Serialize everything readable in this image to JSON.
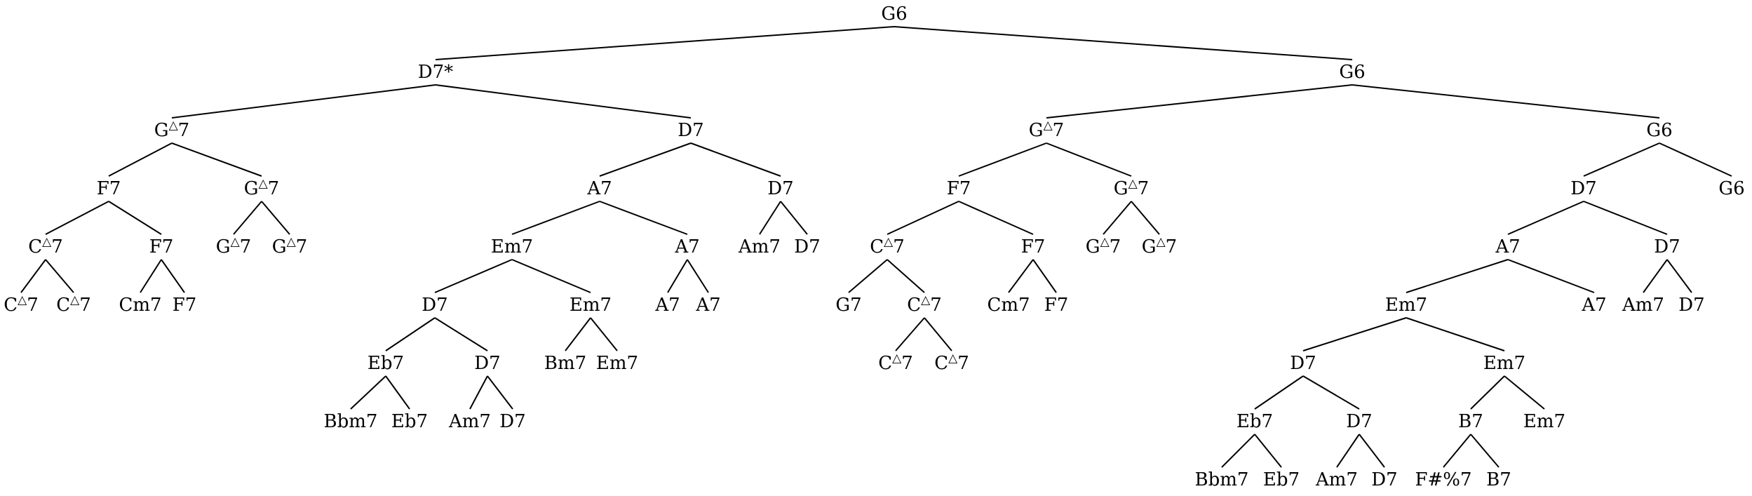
{
  "tree": {
    "nodes": [
      {
        "id": 0,
        "base": "G",
        "sup": "",
        "suffix": "6"
      },
      {
        "id": 1,
        "base": "D7*",
        "sup": "",
        "suffix": ""
      },
      {
        "id": 2,
        "base": "G",
        "sup": "△",
        "suffix": "7"
      },
      {
        "id": 3,
        "base": "F7",
        "sup": "",
        "suffix": ""
      },
      {
        "id": 4,
        "base": "C",
        "sup": "△",
        "suffix": "7"
      },
      {
        "id": 5,
        "base": "C",
        "sup": "△",
        "suffix": "7"
      },
      {
        "id": 6,
        "base": "C",
        "sup": "△",
        "suffix": "7"
      },
      {
        "id": 7,
        "base": "F7",
        "sup": "",
        "suffix": ""
      },
      {
        "id": 8,
        "base": "Cm7",
        "sup": "",
        "suffix": ""
      },
      {
        "id": 9,
        "base": "F7",
        "sup": "",
        "suffix": ""
      },
      {
        "id": 10,
        "base": "G",
        "sup": "△",
        "suffix": "7"
      },
      {
        "id": 11,
        "base": "G",
        "sup": "△",
        "suffix": "7"
      },
      {
        "id": 12,
        "base": "G",
        "sup": "△",
        "suffix": "7"
      },
      {
        "id": 13,
        "base": "D7",
        "sup": "",
        "suffix": ""
      },
      {
        "id": 14,
        "base": "A7",
        "sup": "",
        "suffix": ""
      },
      {
        "id": 15,
        "base": "Em7",
        "sup": "",
        "suffix": ""
      },
      {
        "id": 16,
        "base": "D7",
        "sup": "",
        "suffix": ""
      },
      {
        "id": 17,
        "base": "Eb7",
        "sup": "",
        "suffix": ""
      },
      {
        "id": 18,
        "base": "Bbm7",
        "sup": "",
        "suffix": ""
      },
      {
        "id": 19,
        "base": "Eb7",
        "sup": "",
        "suffix": ""
      },
      {
        "id": 20,
        "base": "D7",
        "sup": "",
        "suffix": ""
      },
      {
        "id": 21,
        "base": "Am7",
        "sup": "",
        "suffix": ""
      },
      {
        "id": 22,
        "base": "D7",
        "sup": "",
        "suffix": ""
      },
      {
        "id": 23,
        "base": "Em7",
        "sup": "",
        "suffix": ""
      },
      {
        "id": 24,
        "base": "Bm7",
        "sup": "",
        "suffix": ""
      },
      {
        "id": 25,
        "base": "Em7",
        "sup": "",
        "suffix": ""
      },
      {
        "id": 26,
        "base": "A7",
        "sup": "",
        "suffix": ""
      },
      {
        "id": 27,
        "base": "A7",
        "sup": "",
        "suffix": ""
      },
      {
        "id": 28,
        "base": "A7",
        "sup": "",
        "suffix": ""
      },
      {
        "id": 29,
        "base": "D7",
        "sup": "",
        "suffix": ""
      },
      {
        "id": 30,
        "base": "Am7",
        "sup": "",
        "suffix": ""
      },
      {
        "id": 31,
        "base": "D7",
        "sup": "",
        "suffix": ""
      },
      {
        "id": 32,
        "base": "G",
        "sup": "",
        "suffix": "6"
      },
      {
        "id": 33,
        "base": "G",
        "sup": "△",
        "suffix": "7"
      },
      {
        "id": 34,
        "base": "F7",
        "sup": "",
        "suffix": ""
      },
      {
        "id": 35,
        "base": "C",
        "sup": "△",
        "suffix": "7"
      },
      {
        "id": 36,
        "base": "G7",
        "sup": "",
        "suffix": ""
      },
      {
        "id": 37,
        "base": "C",
        "sup": "△",
        "suffix": "7"
      },
      {
        "id": 38,
        "base": "C",
        "sup": "△",
        "suffix": "7"
      },
      {
        "id": 39,
        "base": "C",
        "sup": "△",
        "suffix": "7"
      },
      {
        "id": 40,
        "base": "F7",
        "sup": "",
        "suffix": ""
      },
      {
        "id": 41,
        "base": "Cm7",
        "sup": "",
        "suffix": ""
      },
      {
        "id": 42,
        "base": "F7",
        "sup": "",
        "suffix": ""
      },
      {
        "id": 43,
        "base": "G",
        "sup": "△",
        "suffix": "7"
      },
      {
        "id": 44,
        "base": "G",
        "sup": "△",
        "suffix": "7"
      },
      {
        "id": 45,
        "base": "G",
        "sup": "△",
        "suffix": "7"
      },
      {
        "id": 46,
        "base": "G",
        "sup": "",
        "suffix": "6"
      },
      {
        "id": 47,
        "base": "D7",
        "sup": "",
        "suffix": ""
      },
      {
        "id": 48,
        "base": "A7",
        "sup": "",
        "suffix": ""
      },
      {
        "id": 49,
        "base": "Em7",
        "sup": "",
        "suffix": ""
      },
      {
        "id": 50,
        "base": "D7",
        "sup": "",
        "suffix": ""
      },
      {
        "id": 51,
        "base": "Eb7",
        "sup": "",
        "suffix": ""
      },
      {
        "id": 52,
        "base": "Bbm7",
        "sup": "",
        "suffix": ""
      },
      {
        "id": 53,
        "base": "Eb7",
        "sup": "",
        "suffix": ""
      },
      {
        "id": 54,
        "base": "D7",
        "sup": "",
        "suffix": ""
      },
      {
        "id": 55,
        "base": "Am7",
        "sup": "",
        "suffix": ""
      },
      {
        "id": 56,
        "base": "D7",
        "sup": "",
        "suffix": ""
      },
      {
        "id": 57,
        "base": "Em7",
        "sup": "",
        "suffix": ""
      },
      {
        "id": 58,
        "base": "B7",
        "sup": "",
        "suffix": ""
      },
      {
        "id": 59,
        "base": "F#%7",
        "sup": "",
        "suffix": ""
      },
      {
        "id": 60,
        "base": "B7",
        "sup": "",
        "suffix": ""
      },
      {
        "id": 61,
        "base": "Em7",
        "sup": "",
        "suffix": ""
      },
      {
        "id": 62,
        "base": "A7",
        "sup": "",
        "suffix": ""
      },
      {
        "id": 63,
        "base": "D7",
        "sup": "",
        "suffix": ""
      },
      {
        "id": 64,
        "base": "Am7",
        "sup": "",
        "suffix": ""
      },
      {
        "id": 65,
        "base": "D7",
        "sup": "",
        "suffix": ""
      },
      {
        "id": 66,
        "base": "G",
        "sup": "",
        "suffix": "6"
      }
    ],
    "edges": [
      [
        0,
        1
      ],
      [
        0,
        32
      ],
      [
        1,
        2
      ],
      [
        1,
        13
      ],
      [
        2,
        3
      ],
      [
        2,
        10
      ],
      [
        3,
        4
      ],
      [
        3,
        7
      ],
      [
        4,
        5
      ],
      [
        4,
        6
      ],
      [
        7,
        8
      ],
      [
        7,
        9
      ],
      [
        10,
        11
      ],
      [
        10,
        12
      ],
      [
        13,
        14
      ],
      [
        13,
        29
      ],
      [
        14,
        15
      ],
      [
        14,
        26
      ],
      [
        15,
        16
      ],
      [
        15,
        23
      ],
      [
        16,
        17
      ],
      [
        16,
        20
      ],
      [
        17,
        18
      ],
      [
        17,
        19
      ],
      [
        20,
        21
      ],
      [
        20,
        22
      ],
      [
        23,
        24
      ],
      [
        23,
        25
      ],
      [
        26,
        27
      ],
      [
        26,
        28
      ],
      [
        29,
        30
      ],
      [
        29,
        31
      ],
      [
        32,
        33
      ],
      [
        32,
        46
      ],
      [
        33,
        34
      ],
      [
        33,
        43
      ],
      [
        34,
        35
      ],
      [
        34,
        40
      ],
      [
        35,
        36
      ],
      [
        35,
        37
      ],
      [
        37,
        38
      ],
      [
        37,
        39
      ],
      [
        40,
        41
      ],
      [
        40,
        42
      ],
      [
        43,
        44
      ],
      [
        43,
        45
      ],
      [
        46,
        47
      ],
      [
        46,
        66
      ],
      [
        47,
        48
      ],
      [
        47,
        63
      ],
      [
        48,
        49
      ],
      [
        48,
        62
      ],
      [
        49,
        50
      ],
      [
        49,
        57
      ],
      [
        50,
        51
      ],
      [
        50,
        54
      ],
      [
        51,
        52
      ],
      [
        51,
        53
      ],
      [
        54,
        55
      ],
      [
        54,
        56
      ],
      [
        57,
        58
      ],
      [
        57,
        61
      ],
      [
        58,
        59
      ],
      [
        58,
        60
      ],
      [
        63,
        64
      ],
      [
        63,
        65
      ]
    ]
  }
}
